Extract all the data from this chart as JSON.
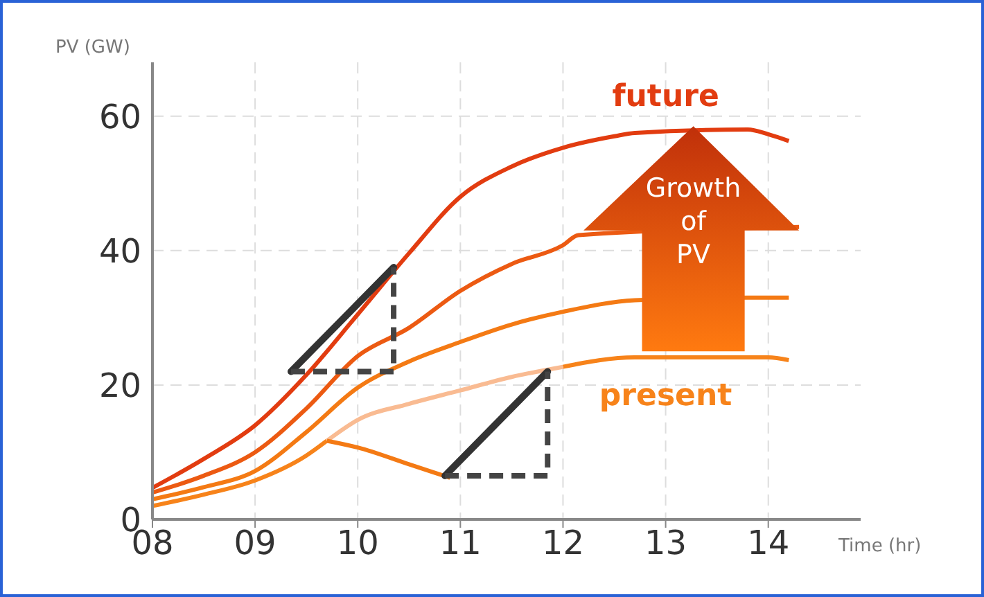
{
  "chart_data": {
    "type": "line",
    "xlabel": "Time (hr)",
    "ylabel": "PV (GW)",
    "xlim": [
      8,
      14.9
    ],
    "ylim": [
      0,
      68
    ],
    "xticks": [
      {
        "value": 8,
        "label": "08"
      },
      {
        "value": 9,
        "label": "09"
      },
      10,
      11,
      12,
      13,
      14
    ],
    "yticks": [
      0,
      20,
      40,
      60
    ],
    "grid": true,
    "marker": "none",
    "line_style": "solid",
    "series": [
      {
        "name": "future",
        "color": "#e23c10",
        "x": [
          8,
          8.5,
          9,
          9.5,
          10,
          10.5,
          11,
          11.5,
          12,
          12.5,
          12.7,
          13.8,
          14,
          14.2
        ],
        "values": [
          4.7,
          9,
          14,
          21.5,
          30.5,
          39.6,
          48,
          52.5,
          55.3,
          57,
          57.5,
          58,
          57.3,
          56.3
        ]
      },
      {
        "color": "#ec5a12",
        "x": [
          8,
          8.5,
          9,
          9.5,
          10,
          10.5,
          11,
          11.5,
          12,
          12.15,
          14.3
        ],
        "values": [
          4,
          6.5,
          10,
          16.5,
          24.3,
          28.5,
          34,
          38,
          40.8,
          42.3,
          43.5
        ]
      },
      {
        "color": "#f47a14",
        "x": [
          8,
          8.5,
          9,
          9.5,
          10,
          10.5,
          11,
          11.5,
          12,
          12.7,
          13.8,
          14,
          14.2
        ],
        "values": [
          3,
          4.8,
          7.2,
          13,
          19.6,
          23.5,
          26.4,
          29,
          30.9,
          32.6,
          33,
          33,
          33
        ]
      },
      {
        "name": "present",
        "color": "#f7831a",
        "x": [
          8,
          8.5,
          9,
          9.5,
          9.7,
          null,
          12,
          12.7,
          13.8,
          14,
          14.2
        ],
        "values": [
          2,
          3.7,
          5.8,
          9.5,
          11.7,
          null,
          22.7,
          24.1,
          24.1,
          24.1,
          23.7
        ]
      },
      {
        "color": "#f9bb92",
        "x": [
          9.7,
          10,
          10.5,
          11,
          11.5,
          12
        ],
        "values": [
          11.7,
          14.8,
          17.2,
          19.2,
          21.2,
          22.7
        ]
      },
      {
        "color": "#f47a14",
        "x": [
          9.7,
          10,
          10.5,
          10.9
        ],
        "values": [
          11.7,
          10.7,
          8.2,
          6.2
        ]
      }
    ],
    "annotations": [
      "Growth of PV"
    ]
  }
}
